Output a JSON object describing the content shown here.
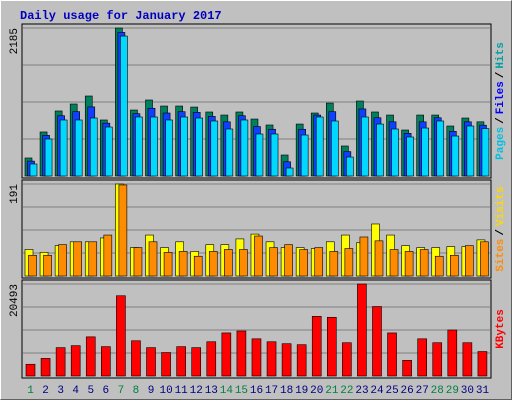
{
  "title": "Daily usage for January 2017",
  "legend_separator": "/",
  "chart_data": [
    {
      "type": "bar",
      "ylim": [
        0,
        2185
      ],
      "yticks": [
        2185
      ],
      "series": [
        {
          "name": "Hits",
          "color": "#00805c",
          "values": [
            266,
            650,
            960,
            1063,
            1181,
            827,
            2185,
            974,
            1122,
            1033,
            1033,
            1018,
            945,
            900,
            945,
            841,
            753,
            310,
            767,
            930,
            1077,
            443,
            1107,
            945,
            900,
            679,
            900,
            900,
            738,
            856,
            800
          ]
        },
        {
          "name": "Files",
          "color": "#1040ff",
          "values": [
            220,
            600,
            890,
            950,
            1020,
            780,
            2120,
            920,
            1000,
            930,
            950,
            940,
            880,
            800,
            890,
            730,
            690,
            210,
            690,
            900,
            950,
            360,
            990,
            860,
            800,
            630,
            800,
            860,
            660,
            800,
            750
          ]
        },
        {
          "name": "Pages",
          "color": "#00d8ff",
          "values": [
            177,
            546,
            827,
            827,
            856,
            723,
            2066,
            871,
            871,
            827,
            871,
            856,
            812,
            694,
            827,
            620,
            620,
            118,
            605,
            871,
            812,
            280,
            871,
            767,
            694,
            576,
            708,
            812,
            590,
            738,
            700
          ]
        }
      ]
    },
    {
      "type": "bar",
      "ylim": [
        0,
        191
      ],
      "yticks": [
        191
      ],
      "series": [
        {
          "name": "Visits",
          "color": "#ffff00",
          "values": [
            55,
            49,
            63,
            71,
            71,
            79,
            191,
            59,
            85,
            59,
            71,
            51,
            65,
            65,
            77,
            87,
            71,
            59,
            59,
            57,
            71,
            85,
            69,
            108,
            85,
            63,
            59,
            59,
            61,
            61,
            75
          ]
        },
        {
          "name": "Sites",
          "color": "#ff8c00",
          "values": [
            43,
            43,
            65,
            71,
            71,
            85,
            189,
            59,
            71,
            49,
            51,
            41,
            51,
            55,
            55,
            83,
            59,
            65,
            55,
            59,
            51,
            57,
            81,
            73,
            55,
            51,
            55,
            41,
            43,
            63,
            71
          ]
        }
      ]
    },
    {
      "type": "bar",
      "ylim": [
        0,
        20493
      ],
      "yticks": [
        20493
      ],
      "categories": [
        "1",
        "2",
        "3",
        "4",
        "5",
        "6",
        "7",
        "8",
        "9",
        "10",
        "11",
        "12",
        "13",
        "14",
        "15",
        "16",
        "17",
        "18",
        "19",
        "20",
        "21",
        "22",
        "23",
        "24",
        "25",
        "26",
        "27",
        "28",
        "29",
        "30",
        "31"
      ],
      "category_colors": [
        "#008040",
        "#000080",
        "#000080",
        "#000080",
        "#000080",
        "#000080",
        "#008040",
        "#008040",
        "#000080",
        "#000080",
        "#000080",
        "#000080",
        "#000080",
        "#008040",
        "#008040",
        "#000080",
        "#000080",
        "#000080",
        "#000080",
        "#000080",
        "#008040",
        "#008040",
        "#000080",
        "#000080",
        "#000080",
        "#000080",
        "#000080",
        "#008040",
        "#008040",
        "#000080",
        "#000080"
      ],
      "series": [
        {
          "name": "KBytes",
          "color": "#ff0000",
          "values": [
            2616,
            3924,
            6322,
            6758,
            8720,
            6540,
            17876,
            7848,
            6322,
            5232,
            6540,
            6322,
            7630,
            9592,
            10028,
            8284,
            7630,
            7194,
            6976,
            13298,
            13080,
            7412,
            20493,
            15478,
            9592,
            3488,
            8284,
            7412,
            10246,
            7412,
            5450
          ]
        }
      ]
    }
  ]
}
